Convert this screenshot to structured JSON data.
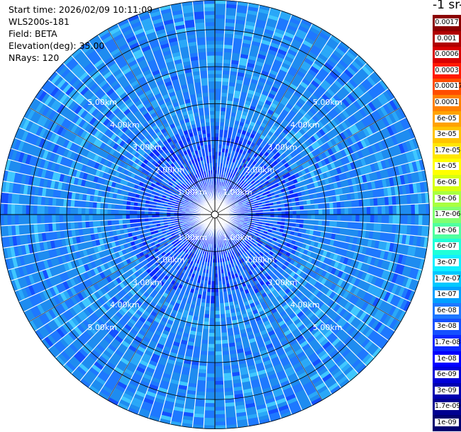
{
  "info": {
    "start_time": "Start time: 2026/02/09 10:11:09",
    "instrument": "WLS200s-181",
    "field": "Field: BETA",
    "elevation": "Elevation(deg): 35.00",
    "nrays": "NRays: 120"
  },
  "colorbar": {
    "title_visible": "-1 sr-",
    "labels": [
      "0.0017",
      "0.001",
      "0.0006",
      "0.0003",
      "0.00017",
      "0.0001",
      "6e-05",
      "3e-05",
      "1.7e-05",
      "1e-05",
      "6e-06",
      "3e-06",
      "1.7e-06",
      "1e-06",
      "6e-07",
      "3e-07",
      "1.7e-07",
      "1e-07",
      "6e-08",
      "3e-08",
      "1.7e-08",
      "1e-08",
      "6e-09",
      "3e-09",
      "1.7e-09",
      "1e-09"
    ],
    "colors": [
      "#8b0000",
      "#b00000",
      "#d80000",
      "#ff1a00",
      "#ff4d00",
      "#ff8000",
      "#ffa200",
      "#ffc400",
      "#ffe600",
      "#ffff00",
      "#d8ff10",
      "#a8ff40",
      "#80ff70",
      "#50ffa0",
      "#20ffd8",
      "#10f0ff",
      "#00c8ff",
      "#00a0ff",
      "#1e78ff",
      "#1450ff",
      "#0a28ff",
      "#0000ff",
      "#0000d8",
      "#0000b0",
      "#000090",
      "#000070"
    ]
  },
  "chart_data": {
    "type": "polar-ppi",
    "field": "BETA",
    "range_rings_km": [
      1,
      2,
      3,
      4,
      5
    ],
    "ring_labels": [
      "1.00km",
      "2.00km",
      "3.00km",
      "4.00km",
      "5.00km"
    ],
    "max_range_km": 5.8,
    "n_rays": 120,
    "elevation_deg": 35.0,
    "dominant_value_range": [
      "3e-08",
      "1e-07"
    ],
    "near_range_value_range": [
      "1e-09",
      "1.7e-08"
    ],
    "grid": true
  }
}
